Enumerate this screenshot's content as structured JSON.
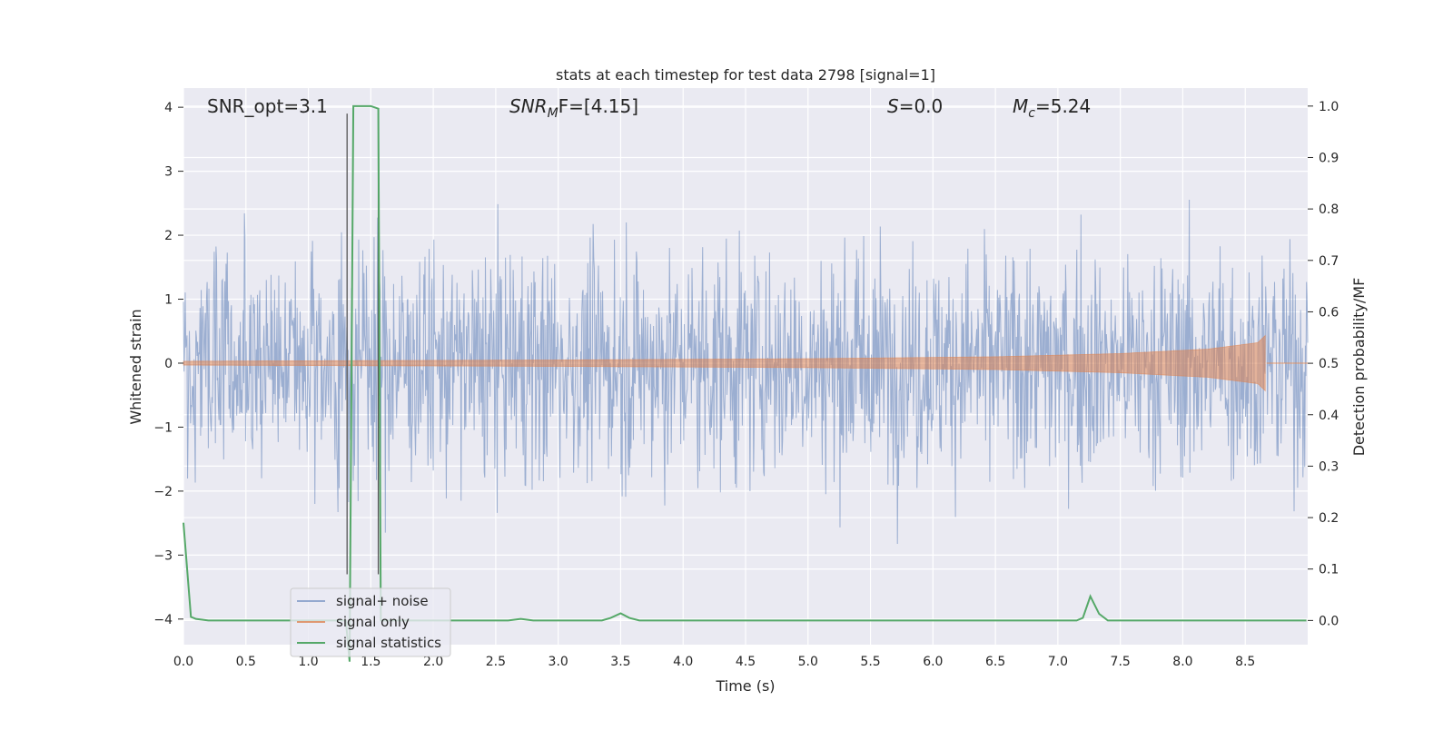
{
  "chart_data": {
    "type": "line",
    "title": "stats at each timestep for test data 2798 [signal=1]",
    "xlabel": "Time (s)",
    "ylabel": "Whitened strain",
    "y2label": "Detection probability/MF",
    "xlim": [
      0.0,
      9.0
    ],
    "ylim": [
      -4.4,
      4.3
    ],
    "y2lim": [
      -0.047,
      1.035
    ],
    "xticks": [
      "0.0",
      "0.5",
      "1.0",
      "1.5",
      "2.0",
      "2.5",
      "3.0",
      "3.5",
      "4.0",
      "4.5",
      "5.0",
      "5.5",
      "6.0",
      "6.5",
      "7.0",
      "7.5",
      "8.0",
      "8.5"
    ],
    "yticks": [
      "−4",
      "−3",
      "−2",
      "−1",
      "0",
      "1",
      "2",
      "3",
      "4"
    ],
    "y2ticks": [
      "0.0",
      "0.1",
      "0.2",
      "0.3",
      "0.4",
      "0.5",
      "0.6",
      "0.7",
      "0.8",
      "0.9",
      "1.0"
    ],
    "grid": true,
    "legend_position": "lower-left",
    "annotations": [
      {
        "prefix": "SNR_opt=3.1",
        "sub": "",
        "suffix": "",
        "italic": false
      },
      {
        "prefix": "SNR",
        "sub": "M",
        "suffix": "F=[4.15]",
        "italic": true
      },
      {
        "prefix": "S",
        "sub": "",
        "suffix": "=0.0",
        "italic": true
      },
      {
        "prefix": "M",
        "sub": "c",
        "suffix": "=5.24",
        "italic": true
      }
    ],
    "series": [
      {
        "name": "signal+ noise",
        "color": "#4c72b0",
        "axis": "left",
        "description_values": {
          "approx_range": [
            -4.0,
            3.9
          ],
          "typical_abs_peak": 2.3
        }
      },
      {
        "name": "signal only",
        "color": "#dd8452",
        "axis": "left",
        "envelope": {
          "x": [
            0.0,
            3.0,
            5.0,
            6.5,
            7.5,
            8.2,
            8.6,
            8.67
          ],
          "amp": [
            0.03,
            0.05,
            0.07,
            0.1,
            0.15,
            0.22,
            0.32,
            0.45
          ]
        }
      },
      {
        "name": "signal statistics",
        "color": "#55a868",
        "axis": "right",
        "x": [
          0.0,
          0.06,
          0.1,
          0.2,
          1.3,
          1.33,
          1.36,
          1.42,
          1.5,
          1.56,
          1.58,
          1.62,
          2.6,
          2.7,
          2.8,
          3.35,
          3.42,
          3.5,
          3.57,
          3.65,
          7.15,
          7.2,
          7.26,
          7.33,
          7.4,
          8.99
        ],
        "values": [
          0.19,
          0.007,
          0.003,
          0.0,
          0.0,
          -0.08,
          1.0,
          1.0,
          1.0,
          0.995,
          0.0,
          0.0,
          0.0,
          0.003,
          0.0,
          0.0,
          0.005,
          0.014,
          0.005,
          0.0,
          0.0,
          0.005,
          0.047,
          0.013,
          0.0,
          0.0
        ]
      }
    ],
    "vertical_markers": [
      1.31,
      1.56
    ]
  }
}
